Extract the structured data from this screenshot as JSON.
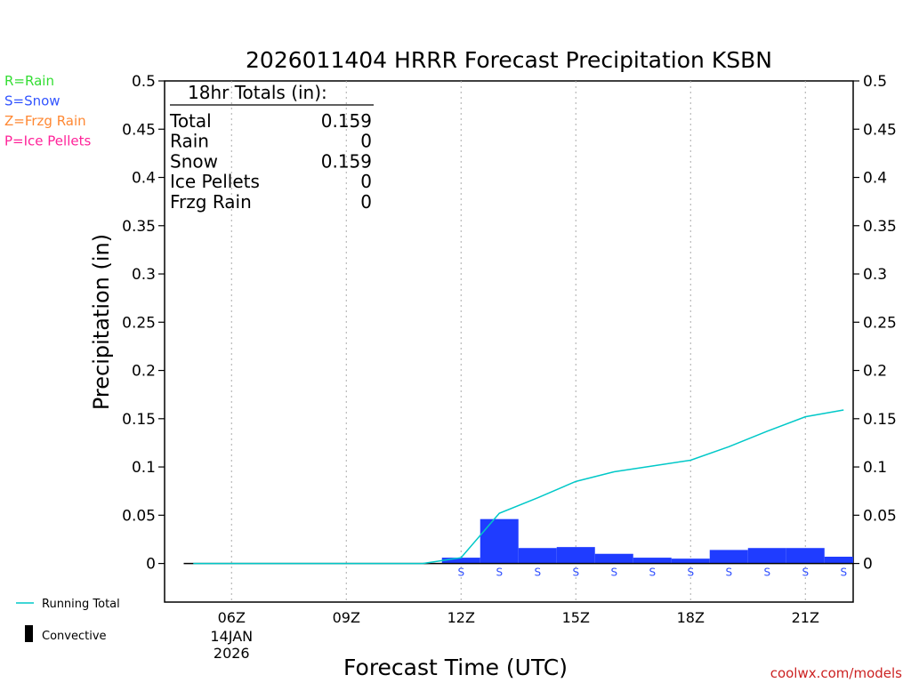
{
  "chart_data": {
    "type": "bar",
    "title": "2026011404 HRRR Forecast Precipitation KSBN",
    "xlabel": "Forecast Time (UTC)",
    "ylabel": "Precipitation (in)",
    "ylim": [
      -0.04,
      0.5
    ],
    "yticks": [
      0,
      0.05,
      0.1,
      0.15,
      0.2,
      0.25,
      0.3,
      0.35,
      0.4,
      0.45,
      0.5
    ],
    "ytick_labels": [
      "0",
      "0.05",
      "0.1",
      "0.15",
      "0.2",
      "0.25",
      "0.3",
      "0.35",
      "0.4",
      "0.45",
      "0.5"
    ],
    "xlim": [
      4.25,
      22.25
    ],
    "xticks": [
      {
        "hour": 6,
        "label": "06Z",
        "sub1": "14JAN",
        "sub2": "2026"
      },
      {
        "hour": 9,
        "label": "09Z",
        "sub1": "",
        "sub2": ""
      },
      {
        "hour": 12,
        "label": "12Z",
        "sub1": "",
        "sub2": ""
      },
      {
        "hour": 15,
        "label": "15Z",
        "sub1": "",
        "sub2": ""
      },
      {
        "hour": 18,
        "label": "18Z",
        "sub1": "",
        "sub2": ""
      },
      {
        "hour": 21,
        "label": "21Z",
        "sub1": "",
        "sub2": ""
      }
    ],
    "grid": "vertical dotted at tick hours",
    "bars": {
      "name": "Snow",
      "color": "#1f3cff",
      "hours": [
        12,
        13,
        14,
        15,
        16,
        17,
        18,
        19,
        20,
        21,
        22
      ],
      "values": [
        0.006,
        0.046,
        0.016,
        0.017,
        0.01,
        0.006,
        0.005,
        0.014,
        0.016,
        0.016,
        0.007
      ]
    },
    "running_total": {
      "name": "Running Total",
      "color": "#00c8c8",
      "hours": [
        5,
        6,
        7,
        8,
        9,
        10,
        11,
        12,
        13,
        14,
        15,
        16,
        17,
        18,
        19,
        20,
        21,
        22
      ],
      "values": [
        0,
        0,
        0,
        0,
        0,
        0,
        0,
        0.006,
        0.052,
        0.068,
        0.085,
        0.095,
        0.101,
        0.107,
        0.121,
        0.137,
        0.152,
        0.159
      ]
    },
    "ptype_markers": {
      "color": "#3050ff",
      "hours": [
        12,
        13,
        14,
        15,
        16,
        17,
        18,
        19,
        20,
        21,
        22
      ],
      "labels": [
        "S",
        "S",
        "S",
        "S",
        "S",
        "S",
        "S",
        "S",
        "S",
        "S",
        "S"
      ]
    },
    "zero_line_hours": [
      4.75,
      22.25
    ]
  },
  "totals": {
    "header": "18hr Totals (in):",
    "rows": [
      {
        "label": "Total",
        "value": "0.159"
      },
      {
        "label": "Rain",
        "value": "0"
      },
      {
        "label": "Snow",
        "value": "0.159"
      },
      {
        "label": "Ice Pellets",
        "value": "0"
      },
      {
        "label": "Frzg Rain",
        "value": "0"
      }
    ]
  },
  "ptype_legend": [
    {
      "text": "R=Rain",
      "color": "#33dd33"
    },
    {
      "text": "S=Snow",
      "color": "#3355ff"
    },
    {
      "text": "Z=Frzg Rain",
      "color": "#ff8833"
    },
    {
      "text": "P=Ice Pellets",
      "color": "#ff2299"
    }
  ],
  "legend": {
    "running_total": "Running Total",
    "convective": "Convective"
  },
  "credit": {
    "text": "coolwx.com/models",
    "color": "#cc2222"
  }
}
